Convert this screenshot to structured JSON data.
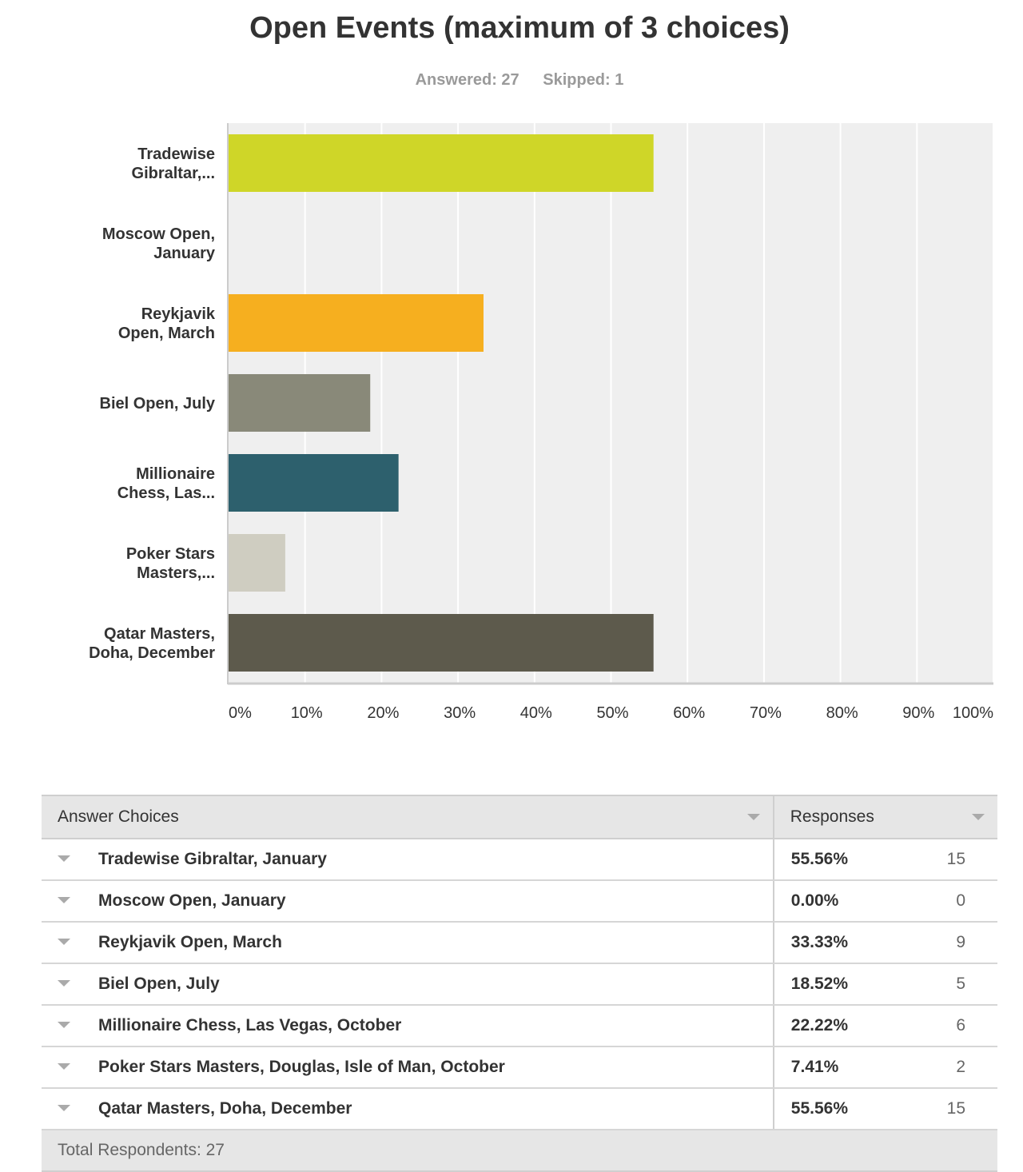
{
  "header": {
    "title": "Open Events (maximum of 3 choices)",
    "answered": "Answered: 27",
    "skipped": "Skipped: 1"
  },
  "chart_data": {
    "type": "bar",
    "orientation": "horizontal",
    "categories": [
      [
        "Tradewise",
        "Gibraltar,..."
      ],
      [
        "Moscow Open,",
        "January"
      ],
      [
        "Reykjavik",
        "Open, March"
      ],
      [
        "Biel Open, July"
      ],
      [
        "Millionaire",
        "Chess, Las..."
      ],
      [
        "Poker Stars",
        "Masters,..."
      ],
      [
        "Qatar Masters,",
        "Doha, December"
      ]
    ],
    "values": [
      55.56,
      0,
      33.33,
      18.52,
      22.22,
      7.41,
      55.56
    ],
    "colors": [
      "#cfd628",
      "#cfd628",
      "#f6af1f",
      "#898979",
      "#2d606d",
      "#cfcdc1",
      "#5d5a4c"
    ],
    "xlim": [
      0,
      100
    ],
    "xticks": [
      "0%",
      "10%",
      "20%",
      "30%",
      "40%",
      "50%",
      "60%",
      "70%",
      "80%",
      "90%",
      "100%"
    ],
    "grid": true,
    "plot_background": "#efefef"
  },
  "table": {
    "header_answer": "Answer Choices",
    "header_responses": "Responses",
    "rows": [
      {
        "answer": "Tradewise Gibraltar, January",
        "percent": "55.56%",
        "count": "15"
      },
      {
        "answer": "Moscow Open, January",
        "percent": "0.00%",
        "count": "0"
      },
      {
        "answer": "Reykjavik Open, March",
        "percent": "33.33%",
        "count": "9"
      },
      {
        "answer": "Biel Open, July",
        "percent": "18.52%",
        "count": "5"
      },
      {
        "answer": "Millionaire Chess, Las Vegas, October",
        "percent": "22.22%",
        "count": "6"
      },
      {
        "answer": "Poker Stars Masters, Douglas, Isle of Man, October",
        "percent": "7.41%",
        "count": "2"
      },
      {
        "answer": "Qatar Masters, Doha, December",
        "percent": "55.56%",
        "count": "15"
      }
    ],
    "footer": "Total Respondents: 27"
  }
}
